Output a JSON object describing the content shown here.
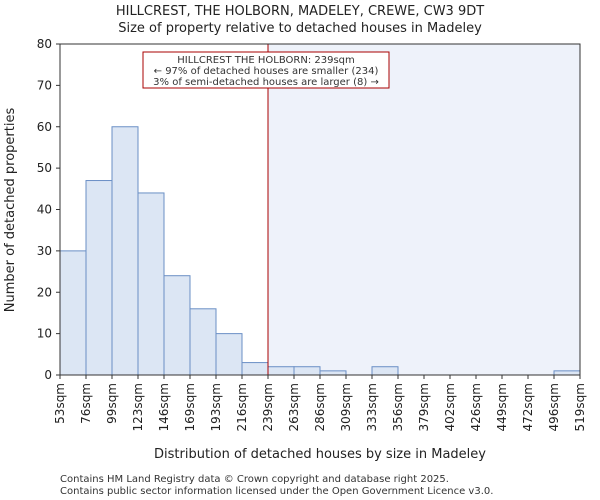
{
  "chart_data": {
    "type": "bar",
    "title_line1": "HILLCREST, THE HOLBORN, MADELEY, CREWE, CW3 9DT",
    "title_line2": "Size of property relative to detached houses in Madeley",
    "xlabel": "Distribution of detached houses by size in Madeley",
    "ylabel": "Number of detached properties",
    "ylim": [
      0,
      80
    ],
    "yticks": [
      0,
      10,
      20,
      30,
      40,
      50,
      60,
      70,
      80
    ],
    "xtick_labels": [
      "53sqm",
      "76sqm",
      "99sqm",
      "123sqm",
      "146sqm",
      "169sqm",
      "193sqm",
      "216sqm",
      "239sqm",
      "263sqm",
      "286sqm",
      "309sqm",
      "333sqm",
      "356sqm",
      "379sqm",
      "402sqm",
      "426sqm",
      "449sqm",
      "472sqm",
      "496sqm",
      "519sqm"
    ],
    "values": [
      30,
      47,
      60,
      44,
      24,
      16,
      10,
      3,
      2,
      2,
      1,
      0,
      2,
      0,
      0,
      0,
      0,
      0,
      0,
      1
    ],
    "highlight_bin_index": 8,
    "annotation": {
      "line1": "HILLCREST THE HOLBORN: 239sqm",
      "line2": "← 97% of detached houses are smaller (234)",
      "line3": "3% of semi-detached houses are larger (8) →"
    },
    "colors": {
      "bar_fill": "#dce6f4",
      "bar_stroke": "#6a8fc5",
      "highlight_region": "#eef2fa",
      "marker_line": "#aa0000",
      "axis": "#333333"
    }
  },
  "footer": {
    "line1": "Contains HM Land Registry data © Crown copyright and database right 2025.",
    "line2": "Contains public sector information licensed under the Open Government Licence v3.0."
  }
}
